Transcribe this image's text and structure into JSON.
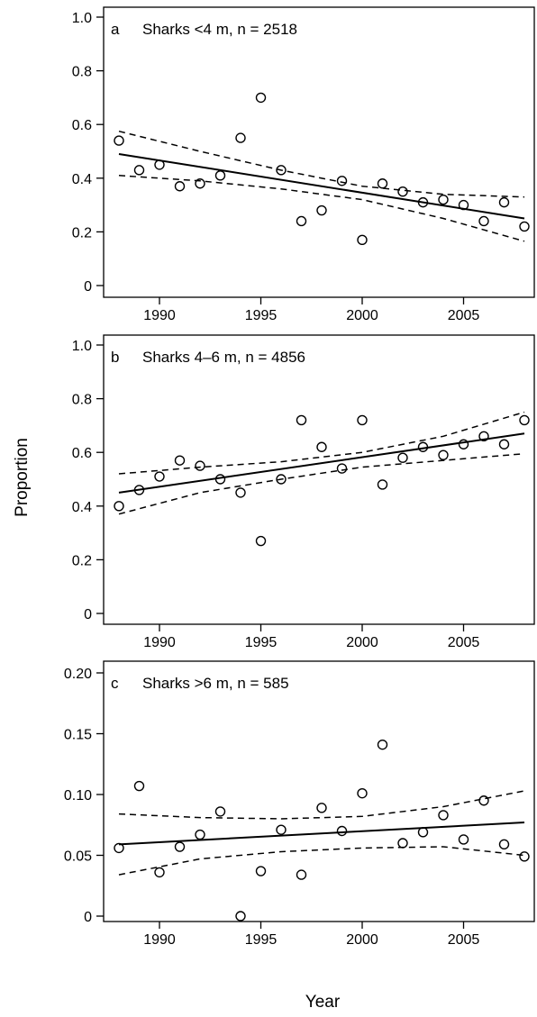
{
  "figure": {
    "y_axis_title": "Proportion",
    "x_axis_title": "Year"
  },
  "chart_data": [
    {
      "type": "scatter",
      "panel_label": "a",
      "title": "Sharks <4 m, n = 2518",
      "xlabel": "Year",
      "ylabel": "Proportion",
      "xlim": [
        1988,
        2008
      ],
      "ylim": [
        0,
        1.0
      ],
      "x_ticks": [
        1990,
        1995,
        2000,
        2005
      ],
      "x_tick_labels": [
        "1990",
        "1995",
        "2000",
        "2005"
      ],
      "y_ticks": [
        0,
        0.2,
        0.4,
        0.6,
        0.8,
        1.0
      ],
      "y_tick_labels": [
        "0",
        "0.2",
        "0.4",
        "0.6",
        "0.8",
        "1.0"
      ],
      "grid": false,
      "points": {
        "x": [
          1988,
          1989,
          1990,
          1991,
          1992,
          1993,
          1994,
          1995,
          1996,
          1997,
          1998,
          1999,
          2000,
          2001,
          2002,
          2003,
          2004,
          2005,
          2006,
          2007,
          2008
        ],
        "y": [
          0.54,
          0.43,
          0.45,
          0.37,
          0.38,
          0.41,
          0.55,
          0.7,
          0.43,
          0.24,
          0.28,
          0.39,
          0.17,
          0.38,
          0.35,
          0.31,
          0.32,
          0.3,
          0.24,
          0.31,
          0.22
        ]
      },
      "fit": {
        "x": [
          1988,
          2008
        ],
        "y": [
          0.49,
          0.25
        ]
      },
      "ci_upper": {
        "x": [
          1988,
          1992,
          1996,
          2000,
          2004,
          2008
        ],
        "y": [
          0.575,
          0.5,
          0.43,
          0.37,
          0.34,
          0.33
        ]
      },
      "ci_lower": {
        "x": [
          1988,
          1992,
          1996,
          2000,
          2004,
          2008
        ],
        "y": [
          0.41,
          0.39,
          0.36,
          0.32,
          0.25,
          0.165
        ]
      }
    },
    {
      "type": "scatter",
      "panel_label": "b",
      "title": "Sharks 4–6 m, n = 4856",
      "xlabel": "Year",
      "ylabel": "Proportion",
      "xlim": [
        1988,
        2008
      ],
      "ylim": [
        0,
        1.0
      ],
      "x_ticks": [
        1990,
        1995,
        2000,
        2005
      ],
      "x_tick_labels": [
        "1990",
        "1995",
        "2000",
        "2005"
      ],
      "y_ticks": [
        0,
        0.2,
        0.4,
        0.6,
        0.8,
        1.0
      ],
      "y_tick_labels": [
        "0",
        "0.2",
        "0.4",
        "0.6",
        "0.8",
        "1.0"
      ],
      "grid": false,
      "points": {
        "x": [
          1988,
          1989,
          1990,
          1991,
          1992,
          1993,
          1994,
          1995,
          1996,
          1997,
          1998,
          1999,
          2000,
          2001,
          2002,
          2003,
          2004,
          2005,
          2006,
          2007,
          2008
        ],
        "y": [
          0.4,
          0.46,
          0.51,
          0.57,
          0.55,
          0.5,
          0.45,
          0.27,
          0.5,
          0.72,
          0.62,
          0.54,
          0.72,
          0.48,
          0.58,
          0.62,
          0.59,
          0.63,
          0.66,
          0.63,
          0.72
        ]
      },
      "fit": {
        "x": [
          1988,
          2008
        ],
        "y": [
          0.45,
          0.67
        ]
      },
      "ci_upper": {
        "x": [
          1988,
          1992,
          1996,
          2000,
          2004,
          2008
        ],
        "y": [
          0.52,
          0.545,
          0.565,
          0.6,
          0.66,
          0.75
        ]
      },
      "ci_lower": {
        "x": [
          1988,
          1992,
          1996,
          2000,
          2004,
          2008
        ],
        "y": [
          0.37,
          0.45,
          0.5,
          0.545,
          0.57,
          0.595
        ]
      }
    },
    {
      "type": "scatter",
      "panel_label": "c",
      "title": "Sharks >6 m, n = 585",
      "xlabel": "Year",
      "ylabel": "Proportion",
      "xlim": [
        1988,
        2008
      ],
      "ylim": [
        0,
        0.2
      ],
      "x_ticks": [
        1990,
        1995,
        2000,
        2005
      ],
      "x_tick_labels": [
        "1990",
        "1995",
        "2000",
        "2005"
      ],
      "y_ticks": [
        0,
        0.05,
        0.1,
        0.15,
        0.2
      ],
      "y_tick_labels": [
        "0",
        "0.05",
        "0.10",
        "0.15",
        "0.20"
      ],
      "grid": false,
      "points": {
        "x": [
          1988,
          1989,
          1990,
          1991,
          1992,
          1993,
          1994,
          1995,
          1996,
          1997,
          1998,
          1999,
          2000,
          2001,
          2002,
          2003,
          2004,
          2005,
          2006,
          2007,
          2008
        ],
        "y": [
          0.056,
          0.107,
          0.036,
          0.057,
          0.067,
          0.086,
          0.0,
          0.037,
          0.071,
          0.034,
          0.089,
          0.07,
          0.101,
          0.141,
          0.06,
          0.069,
          0.083,
          0.063,
          0.095,
          0.059,
          0.049
        ]
      },
      "fit": {
        "x": [
          1988,
          2008
        ],
        "y": [
          0.059,
          0.077
        ]
      },
      "ci_upper": {
        "x": [
          1988,
          1992,
          1996,
          2000,
          2004,
          2008
        ],
        "y": [
          0.084,
          0.081,
          0.08,
          0.082,
          0.09,
          0.103
        ]
      },
      "ci_lower": {
        "x": [
          1988,
          1992,
          1996,
          2000,
          2004,
          2008
        ],
        "y": [
          0.034,
          0.047,
          0.053,
          0.056,
          0.057,
          0.05
        ]
      }
    }
  ]
}
